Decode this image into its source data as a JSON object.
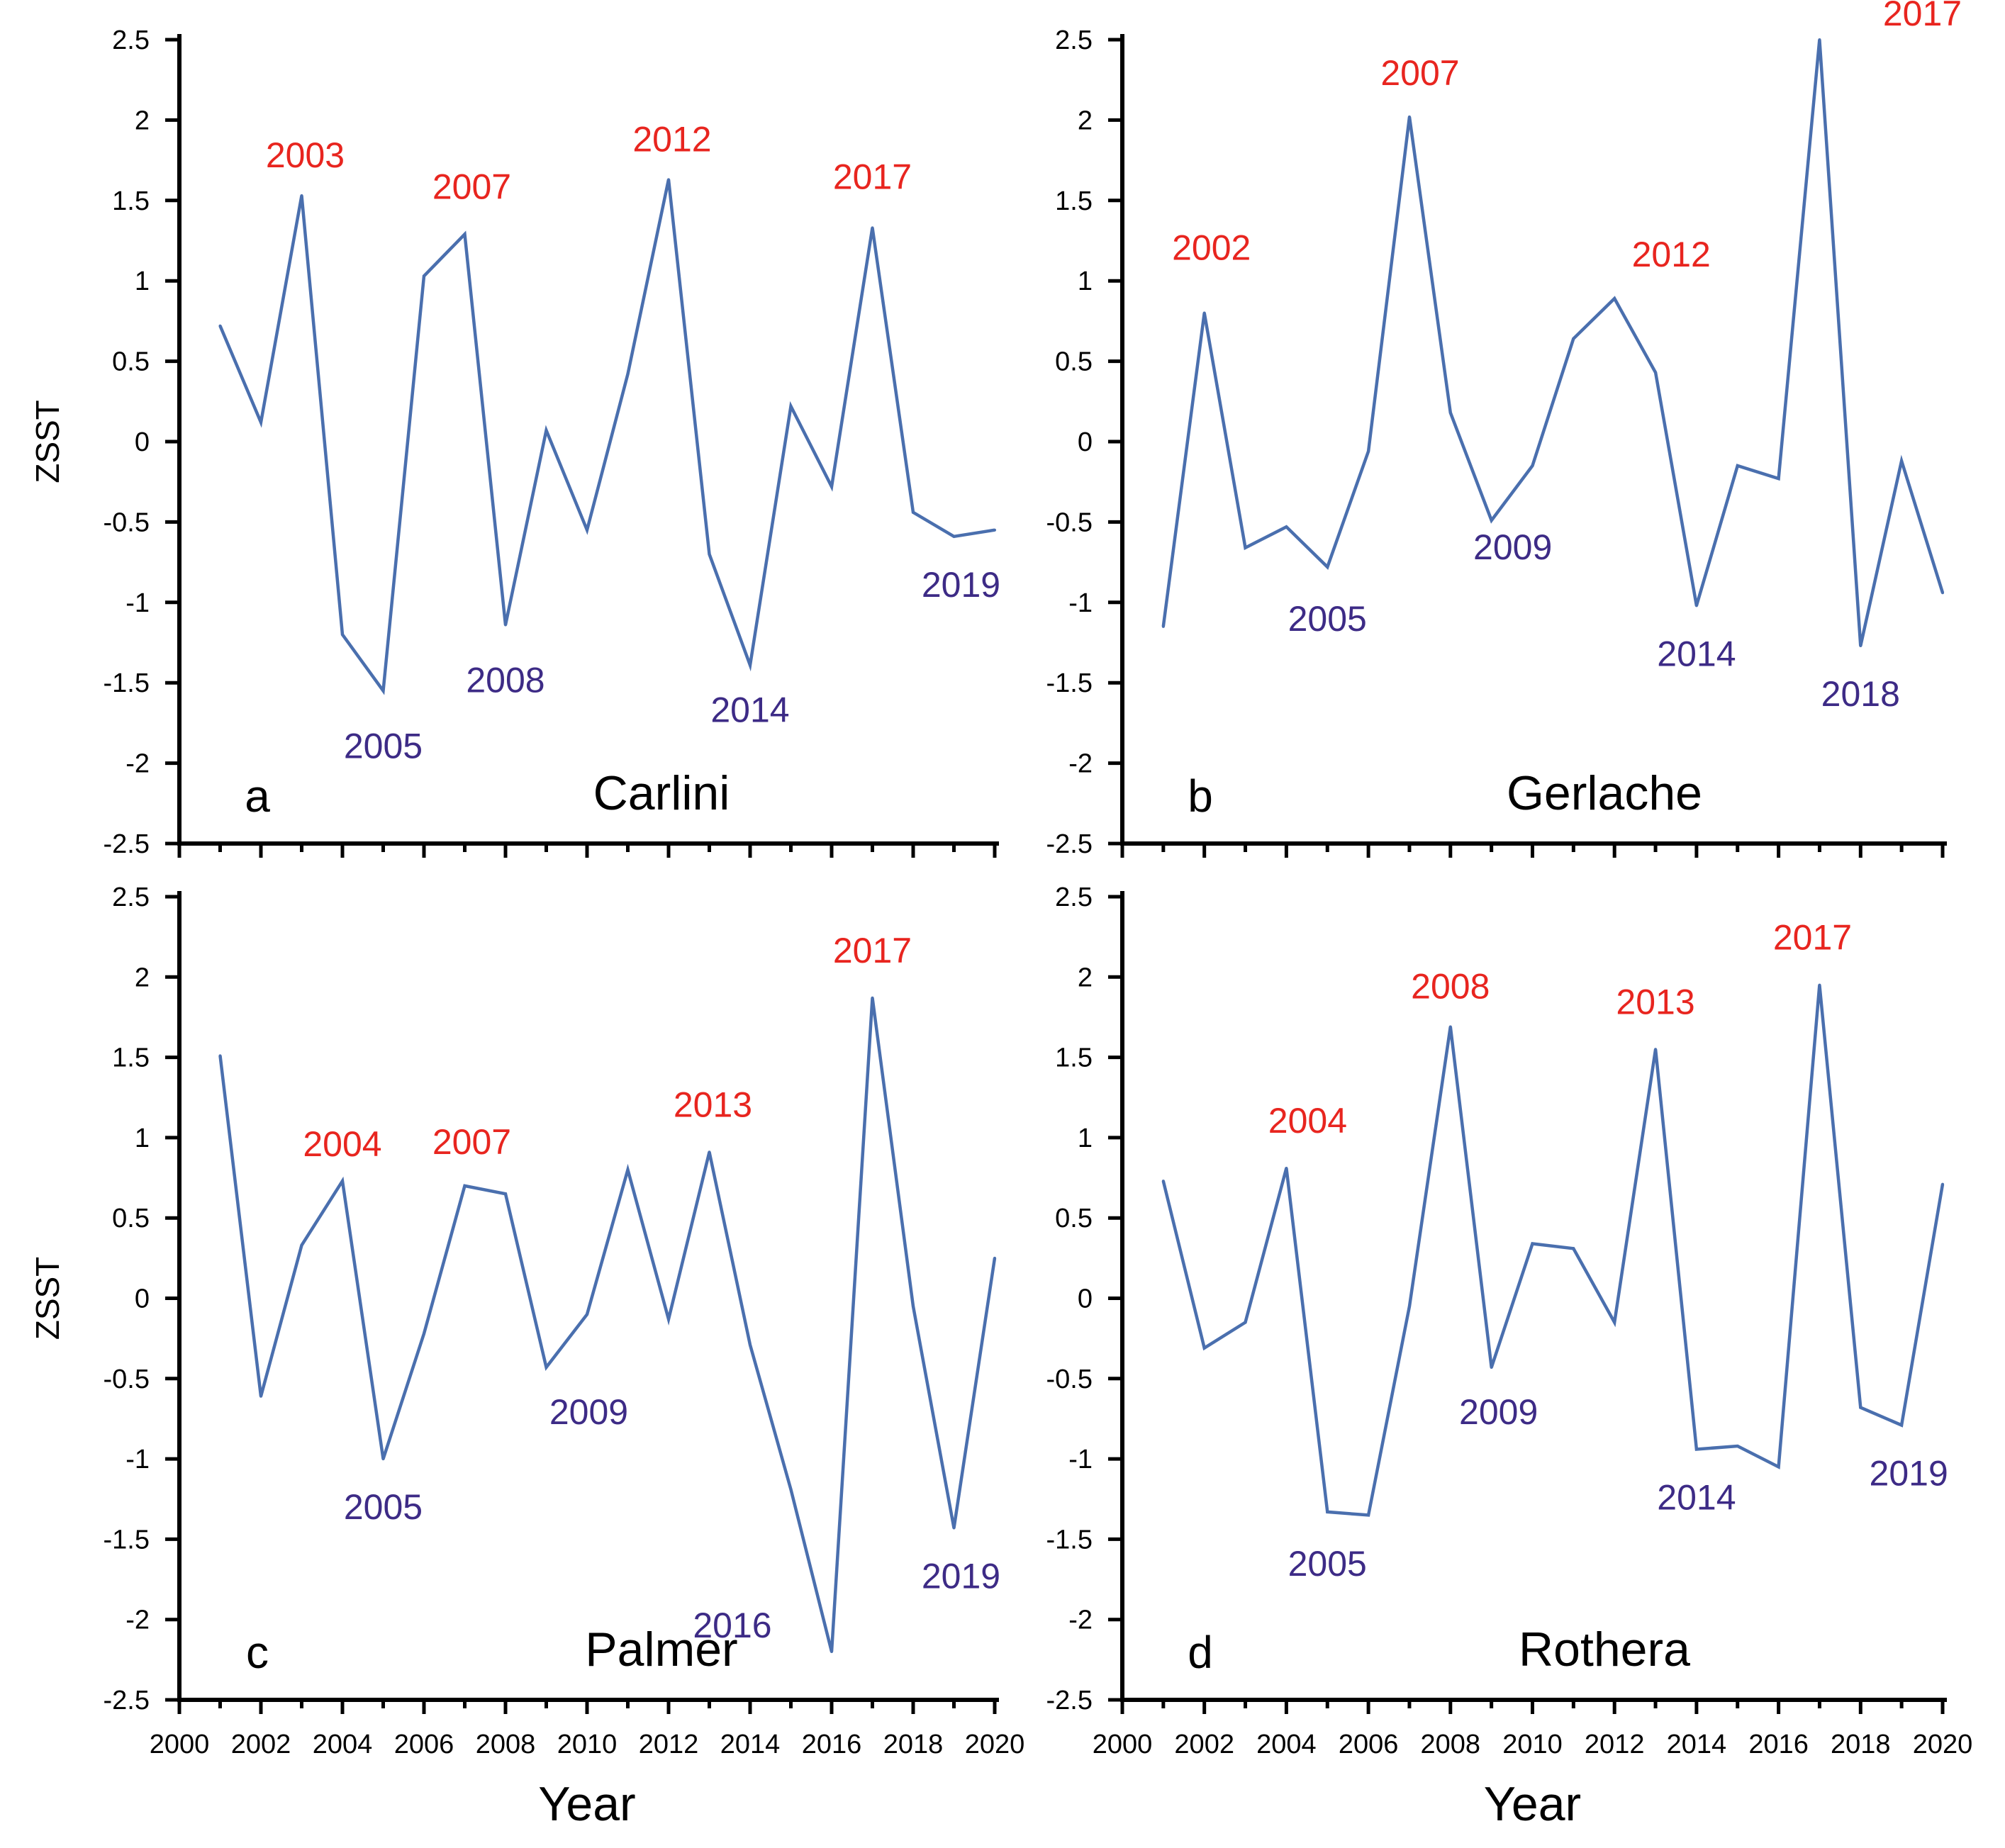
{
  "colors": {
    "line": "#4a6fae",
    "high": "#e8251f",
    "low": "#3d2b86",
    "axis": "#000000"
  },
  "chart_data": [
    {
      "type": "line",
      "panel": "a",
      "title": "Carlini",
      "xlabel": "",
      "ylabel": "ZSST",
      "xlim": [
        2000,
        2020
      ],
      "ylim": [
        -2.5,
        2.5
      ],
      "x_ticks": [
        "2000",
        "2002",
        "2004",
        "2006",
        "2008",
        "2010",
        "2012",
        "2014",
        "2016",
        "2018",
        "2020"
      ],
      "y_ticks": [
        "-2.5",
        "-2",
        "-1.5",
        "-1",
        "-0.5",
        "0",
        "0.5",
        "1",
        "1.5",
        "2",
        "2.5"
      ],
      "x": [
        2001,
        2002,
        2003,
        2004,
        2005,
        2006,
        2007,
        2008,
        2009,
        2010,
        2011,
        2012,
        2013,
        2014,
        2015,
        2016,
        2017,
        2018,
        2019,
        2020
      ],
      "values": [
        0.72,
        0.12,
        1.53,
        -1.2,
        -1.55,
        1.03,
        1.29,
        -1.14,
        0.07,
        -0.55,
        0.42,
        1.63,
        -0.7,
        -1.39,
        0.22,
        -0.28,
        1.33,
        -0.44,
        -0.59,
        -0.55
      ],
      "annotations": [
        {
          "text": "2003",
          "x": 2003,
          "type": "high"
        },
        {
          "text": "2007",
          "x": 2007,
          "type": "high"
        },
        {
          "text": "2012",
          "x": 2012,
          "type": "high"
        },
        {
          "text": "2017",
          "x": 2017,
          "type": "high"
        },
        {
          "text": "2005",
          "x": 2005,
          "type": "low"
        },
        {
          "text": "2008",
          "x": 2008,
          "type": "low"
        },
        {
          "text": "2014",
          "x": 2014,
          "type": "low"
        },
        {
          "text": "2019",
          "x": 2019,
          "type": "low"
        }
      ]
    },
    {
      "type": "line",
      "panel": "b",
      "title": "Gerlache",
      "xlabel": "",
      "ylabel": "",
      "xlim": [
        2000,
        2020
      ],
      "ylim": [
        -2.5,
        2.5
      ],
      "x_ticks": [
        "2000",
        "2002",
        "2004",
        "2006",
        "2008",
        "2010",
        "2012",
        "2014",
        "2016",
        "2018",
        "2020"
      ],
      "y_ticks": [
        "-2.5",
        "-2",
        "-1.5",
        "-1",
        "-0.5",
        "0",
        "0.5",
        "1",
        "1.5",
        "2",
        "2.5"
      ],
      "x": [
        2001,
        2002,
        2003,
        2004,
        2005,
        2006,
        2007,
        2008,
        2009,
        2010,
        2011,
        2012,
        2013,
        2014,
        2015,
        2016,
        2017,
        2018,
        2019,
        2020
      ],
      "values": [
        -1.15,
        0.8,
        -0.66,
        -0.53,
        -0.78,
        -0.06,
        2.02,
        0.18,
        -0.49,
        -0.15,
        0.64,
        0.89,
        0.43,
        -1.02,
        -0.15,
        -0.23,
        2.5,
        -1.27,
        -0.12,
        -0.94
      ],
      "annotations": [
        {
          "text": "2002",
          "x": 2002,
          "type": "high"
        },
        {
          "text": "2007",
          "x": 2007,
          "type": "high"
        },
        {
          "text": "2012",
          "x": 2012,
          "type": "high"
        },
        {
          "text": "2017",
          "x": 2017,
          "type": "high"
        },
        {
          "text": "2005",
          "x": 2005,
          "type": "low"
        },
        {
          "text": "2009",
          "x": 2009,
          "type": "low"
        },
        {
          "text": "2014",
          "x": 2014,
          "type": "low"
        },
        {
          "text": "2018",
          "x": 2018,
          "type": "low"
        }
      ]
    },
    {
      "type": "line",
      "panel": "c",
      "title": "Palmer",
      "xlabel": "Year",
      "ylabel": "ZSST",
      "xlim": [
        2000,
        2020
      ],
      "ylim": [
        -2.5,
        2.5
      ],
      "x_ticks": [
        "2000",
        "2002",
        "2004",
        "2006",
        "2008",
        "2010",
        "2012",
        "2014",
        "2016",
        "2018",
        "2020"
      ],
      "y_ticks": [
        "-2.5",
        "-2",
        "-1.5",
        "-1",
        "-0.5",
        "0",
        "0.5",
        "1",
        "1.5",
        "2",
        "2.5"
      ],
      "x": [
        2001,
        2002,
        2003,
        2004,
        2005,
        2006,
        2007,
        2008,
        2009,
        2010,
        2011,
        2012,
        2013,
        2014,
        2015,
        2016,
        2017,
        2018,
        2019,
        2020
      ],
      "values": [
        1.51,
        -0.61,
        0.33,
        0.73,
        -1.0,
        -0.22,
        0.7,
        0.65,
        -0.43,
        -0.1,
        0.8,
        -0.13,
        0.91,
        -0.29,
        -1.19,
        -2.2,
        1.87,
        -0.05,
        -1.43,
        0.25
      ],
      "annotations": [
        {
          "text": "2004",
          "x": 2004,
          "type": "high"
        },
        {
          "text": "2007",
          "x": 2007,
          "type": "high"
        },
        {
          "text": "2013",
          "x": 2013,
          "type": "high"
        },
        {
          "text": "2017",
          "x": 2017,
          "type": "high"
        },
        {
          "text": "2005",
          "x": 2005,
          "type": "low"
        },
        {
          "text": "2009",
          "x": 2009,
          "type": "low"
        },
        {
          "text": "2016",
          "x": 2016,
          "type": "low"
        },
        {
          "text": "2019",
          "x": 2019,
          "type": "low"
        }
      ]
    },
    {
      "type": "line",
      "panel": "d",
      "title": "Rothera",
      "xlabel": "Year",
      "ylabel": "",
      "xlim": [
        2000,
        2020
      ],
      "ylim": [
        -2.5,
        2.5
      ],
      "x_ticks": [
        "2000",
        "2002",
        "2004",
        "2006",
        "2008",
        "2010",
        "2012",
        "2014",
        "2016",
        "2018",
        "2020"
      ],
      "y_ticks": [
        "-2.5",
        "-2",
        "-1.5",
        "-1",
        "-0.5",
        "0",
        "0.5",
        "1",
        "1.5",
        "2",
        "2.5"
      ],
      "x": [
        2001,
        2002,
        2003,
        2004,
        2005,
        2006,
        2007,
        2008,
        2009,
        2010,
        2011,
        2012,
        2013,
        2014,
        2015,
        2016,
        2017,
        2018,
        2019,
        2020
      ],
      "values": [
        0.73,
        -0.31,
        -0.15,
        0.81,
        -1.33,
        -1.35,
        -0.05,
        1.69,
        -0.43,
        0.34,
        0.31,
        -0.15,
        1.55,
        -0.94,
        -0.92,
        -1.05,
        1.95,
        -0.68,
        -0.79,
        0.71
      ],
      "annotations": [
        {
          "text": "2004",
          "x": 2004,
          "type": "high"
        },
        {
          "text": "2008",
          "x": 2008,
          "type": "high"
        },
        {
          "text": "2013",
          "x": 2013,
          "type": "high"
        },
        {
          "text": "2017",
          "x": 2017,
          "type": "high"
        },
        {
          "text": "2005",
          "x": 2005,
          "type": "low"
        },
        {
          "text": "2009",
          "x": 2009,
          "type": "low"
        },
        {
          "text": "2014",
          "x": 2014,
          "type": "low"
        },
        {
          "text": "2019",
          "x": 2019,
          "type": "low"
        }
      ]
    }
  ]
}
